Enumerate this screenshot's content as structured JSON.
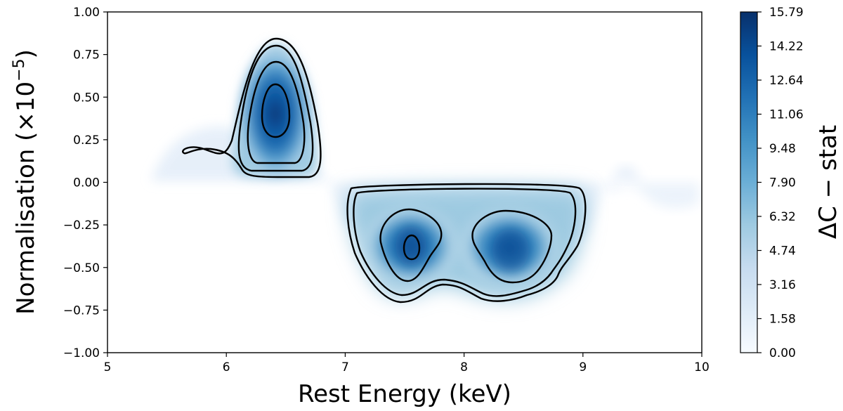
{
  "chart_data": {
    "type": "heatmap",
    "title": "",
    "xlabel": "Rest Energy (keV)",
    "ylabel_text": "Normalisation (×10",
    "ylabel_exponent": "−5",
    "ylabel_close": ")",
    "xlim": [
      5,
      10
    ],
    "ylim": [
      -1.0,
      1.0
    ],
    "xticks": [
      "5",
      "6",
      "7",
      "8",
      "9",
      "10"
    ],
    "yticks": [
      "1.00",
      "0.75",
      "0.50",
      "0.25",
      "0.00",
      "−0.25",
      "−0.50",
      "−0.75",
      "−1.00"
    ],
    "colorbar": {
      "label": "ΔC − stat",
      "range": [
        0.0,
        15.79
      ],
      "ticks": [
        "15.79",
        "14.22",
        "12.64",
        "11.06",
        "9.48",
        "7.90",
        "6.32",
        "4.74",
        "3.16",
        "1.58",
        "0.00"
      ],
      "colormap": "Blues",
      "color_low": "#f7fbff",
      "color_high": "#08306b"
    },
    "peaks": [
      {
        "x": 6.42,
        "y": 0.4,
        "value": 15.79
      },
      {
        "x": 7.55,
        "y": -0.37,
        "value": 13.5
      },
      {
        "x": 8.35,
        "y": -0.4,
        "value": 13.2
      }
    ],
    "grid": false
  }
}
